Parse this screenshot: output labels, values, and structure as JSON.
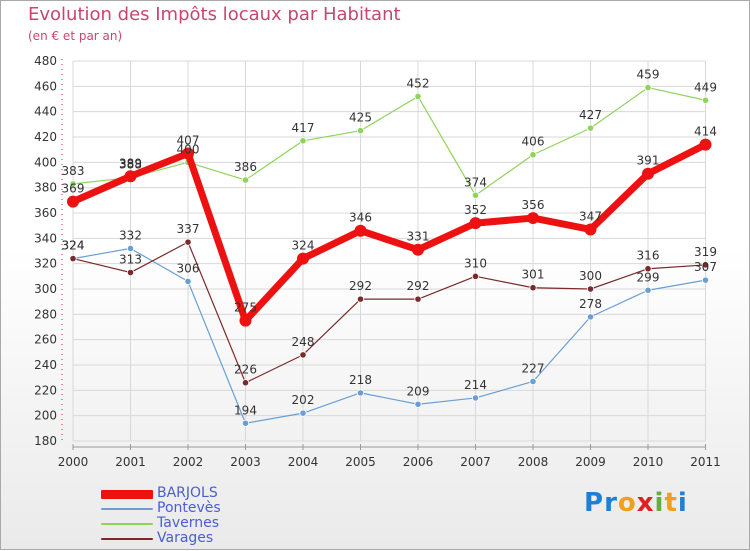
{
  "title": "Evolution des Impôts locaux par Habitant",
  "subtitle": "(en € et par an)",
  "logo": {
    "letters": [
      "P",
      "r",
      "o",
      "x",
      "i",
      "t",
      "i"
    ],
    "colors": [
      "#1e7fd6",
      "#1e7fd6",
      "#f0a020",
      "#e02020",
      "#60b040",
      "#f0a020",
      "#1e7fd6"
    ]
  },
  "chart_data": {
    "type": "line",
    "title": "Evolution des Impôts locaux par Habitant",
    "ylabel": "(en € et par an)",
    "xlabel": "",
    "categories": [
      "2000",
      "2001",
      "2002",
      "2003",
      "2004",
      "2005",
      "2006",
      "2007",
      "2008",
      "2009",
      "2010",
      "2011"
    ],
    "ylim": [
      180,
      480
    ],
    "yticks": [
      "180",
      "200",
      "220",
      "240",
      "260",
      "280",
      "300",
      "320",
      "340",
      "360",
      "380",
      "400",
      "420",
      "440",
      "460",
      "480"
    ],
    "grid": true,
    "legend": "bottom-left",
    "series": [
      {
        "name": "BARJOLS",
        "color": "#ee1111",
        "values": [
          369,
          389,
          407,
          275,
          324,
          346,
          331,
          352,
          356,
          347,
          391,
          414
        ],
        "labels": [
          "369",
          "389",
          "407",
          "275",
          "324",
          "346",
          "331",
          "352",
          "356",
          "347",
          "391",
          "414"
        ]
      },
      {
        "name": "Pontevès",
        "color": "#6a9fd4",
        "values": [
          324,
          332,
          306,
          194,
          202,
          218,
          209,
          214,
          227,
          278,
          299,
          307
        ],
        "labels": [
          "324",
          "332",
          "306",
          "194",
          "202",
          "218",
          "209",
          "214",
          "227",
          "278",
          "299",
          "307"
        ]
      },
      {
        "name": "Tavernes",
        "color": "#8fd35b",
        "values": [
          383,
          388,
          400,
          386,
          417,
          425,
          452,
          374,
          406,
          427,
          459,
          449
        ],
        "labels": [
          "383",
          "388",
          "400",
          "386",
          "417",
          "425",
          "452",
          "374",
          "406",
          "427",
          "459",
          "449"
        ]
      },
      {
        "name": "Varages",
        "color": "#7a2a2a",
        "values": [
          324,
          313,
          337,
          226,
          248,
          292,
          292,
          310,
          301,
          300,
          316,
          319
        ],
        "labels": [
          "324",
          "313",
          "337",
          "226",
          "248",
          "292",
          "292",
          "310",
          "301",
          "300",
          "316",
          "319"
        ]
      }
    ]
  }
}
